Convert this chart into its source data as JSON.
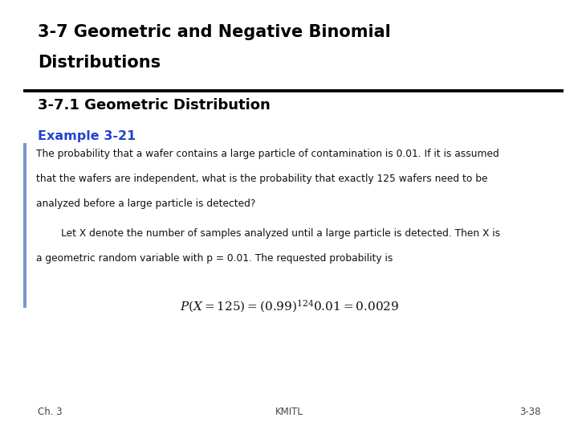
{
  "title_line1": "3-7 Geometric and Negative Binomial",
  "title_line2": "Distributions",
  "section_title": "3-7.1 Geometric Distribution",
  "example_label": "Example 3-21",
  "para1_l1": "The probability that a wafer contains a large particle of contamination is 0.01. If it is assumed",
  "para1_l2": "that the wafers are independent, what is the probability that exactly 125 wafers need to be",
  "para1_l3": "analyzed before a large particle is detected?",
  "para2_l1": "        Let X denote the number of samples analyzed until a large particle is detected. Then X is",
  "para2_l2": "a geometric random variable with p = 0.01. The requested probability is",
  "footer_left": "Ch. 3",
  "footer_center": "KMITL",
  "footer_right": "3-38",
  "bg_color": "#ffffff",
  "title_color": "#000000",
  "section_color": "#000000",
  "example_color": "#2244cc",
  "body_color": "#111111",
  "blue_bar_color": "#7799cc",
  "footer_color": "#444444",
  "title_fontsize": 15,
  "section_fontsize": 13,
  "example_fontsize": 11.5,
  "body_fontsize": 8.8,
  "footer_fontsize": 8.5,
  "formula_fontsize": 11
}
